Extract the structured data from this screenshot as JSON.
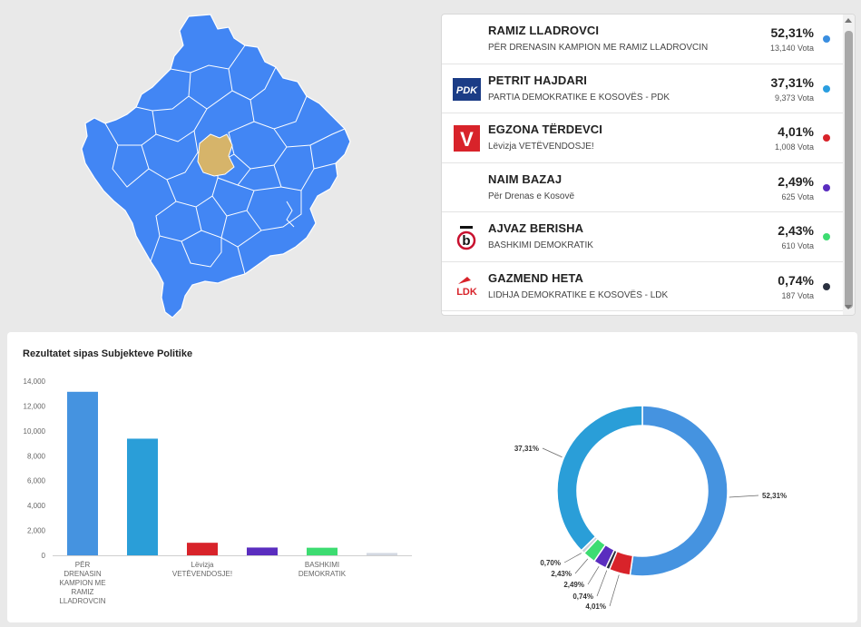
{
  "map": {
    "region_color": "#4286f4",
    "selected_color": "#d6b46a",
    "selected_municipality": "Drenas"
  },
  "results": {
    "candidates": [
      {
        "name": "RAMIZ LLADROVCI",
        "party": "PËR DRENASIN KAMPION ME RAMIZ LLADROVCIN",
        "percent": "52,31%",
        "votes": "13,140 Vota",
        "color": "#3a8ee0",
        "logo": "none"
      },
      {
        "name": "PETRIT HAJDARI",
        "party": "PARTIA DEMOKRATIKE E KOSOVËS - PDK",
        "percent": "37,31%",
        "votes": "9,373 Vota",
        "color": "#2a9ee0",
        "logo": "pdk-logo",
        "logo_text": "PDK"
      },
      {
        "name": "EGZONA TËRDEVCI",
        "party": "Lëvizja VETËVENDOSJE!",
        "percent": "4,01%",
        "votes": "1,008 Vota",
        "color": "#d8232a",
        "logo": "vv-logo",
        "logo_text": "V"
      },
      {
        "name": "NAIM BAZAJ",
        "party": "Për Drenas e Kosovë",
        "percent": "2,49%",
        "votes": "625 Vota",
        "color": "#5a2dbf",
        "logo": "none"
      },
      {
        "name": "AJVAZ BERISHA",
        "party": "BASHKIMI DEMOKRATIK",
        "percent": "2,43%",
        "votes": "610 Vota",
        "color": "#3ddc71",
        "logo": "bd-logo",
        "logo_text": "b"
      },
      {
        "name": "GAZMEND HETA",
        "party": "LIDHJA DEMOKRATIKE E KOSOVËS - LDK",
        "percent": "0,74%",
        "votes": "187 Vota",
        "color": "#2b3140",
        "logo": "ldk-logo",
        "logo_text": "LDK"
      }
    ]
  },
  "chart_section": {
    "title": "Rezultatet sipas Subjekteve Politike"
  },
  "chart_data": [
    {
      "type": "bar",
      "title": "",
      "xlabel": "",
      "ylabel": "",
      "ylim": [
        0,
        14000
      ],
      "yticks": [
        "0",
        "2,000",
        "4,000",
        "6,000",
        "8,000",
        "10,000",
        "12,000",
        "14,000"
      ],
      "ytick_values": [
        0,
        2000,
        4000,
        6000,
        8000,
        10000,
        12000,
        14000
      ],
      "grid": false,
      "categories": [
        [
          "PËR",
          "DRENASIN",
          "KAMPION ME",
          "RAMIZ",
          "LLADROVCIN"
        ],
        [],
        [
          "Lëvizja",
          "VETËVENDOSJE!"
        ],
        [],
        [
          "BASHKIMI",
          "DEMOKRATIK"
        ],
        []
      ],
      "values": [
        13140,
        9373,
        1008,
        625,
        610,
        187
      ],
      "colors": [
        "#4593e0",
        "#2a9ed8",
        "#d8232a",
        "#5a2dbf",
        "#3ddc71",
        "#d3d8e2"
      ]
    },
    {
      "type": "pie",
      "donut": true,
      "values": [
        52.31,
        4.01,
        0.74,
        2.49,
        2.43,
        0.7,
        37.31
      ],
      "labels": [
        "52,31%",
        "4,01%",
        "0,74%",
        "2,49%",
        "2,43%",
        "0,70%",
        "37,31%"
      ],
      "colors": [
        "#4593e0",
        "#d8232a",
        "#2b3140",
        "#5a2dbf",
        "#3ddc71",
        "#c9ced8",
        "#2a9ed8"
      ]
    }
  ]
}
